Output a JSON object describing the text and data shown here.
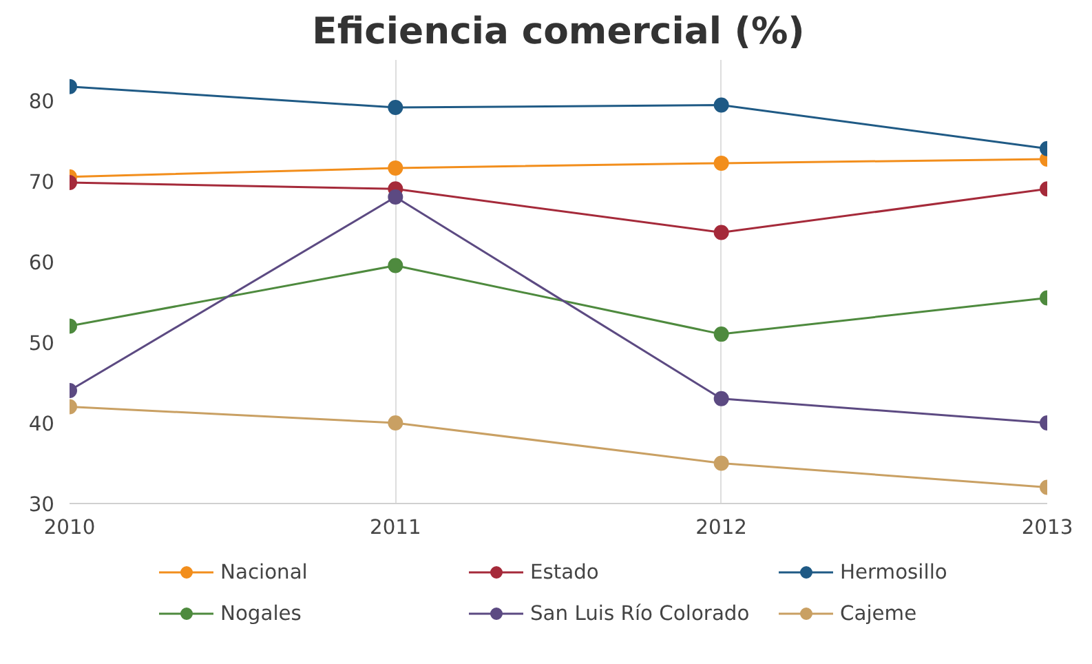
{
  "chart_data": {
    "type": "line",
    "title": "Eficiencia comercial (%)",
    "x": [
      2010,
      2011,
      2012,
      2013
    ],
    "xlim": [
      2010,
      2013
    ],
    "xticks": [
      2010,
      2011,
      2012,
      2013
    ],
    "ylim": [
      30,
      85
    ],
    "yticks": [
      30,
      40,
      50,
      60,
      70,
      80
    ],
    "grid": "x",
    "legend": "bottom",
    "marker": "circle",
    "series": [
      {
        "name": "Nacional",
        "color": "#f28e1c",
        "values": [
          70.5,
          71.6,
          72.2,
          72.7
        ]
      },
      {
        "name": "Estado",
        "color": "#a52a3a",
        "values": [
          69.8,
          69,
          63.6,
          69
        ]
      },
      {
        "name": "Hermosillo",
        "color": "#1f5a85",
        "values": [
          81.7,
          79.1,
          79.4,
          74
        ]
      },
      {
        "name": "Nogales",
        "color": "#4e8a3e",
        "values": [
          52,
          59.5,
          51,
          55.5
        ]
      },
      {
        "name": "San Luis Río Colorado",
        "color": "#5c4a82",
        "values": [
          44,
          68,
          43,
          40
        ]
      },
      {
        "name": "Cajeme",
        "color": "#c9a063",
        "values": [
          42,
          40,
          35,
          32
        ]
      }
    ]
  }
}
